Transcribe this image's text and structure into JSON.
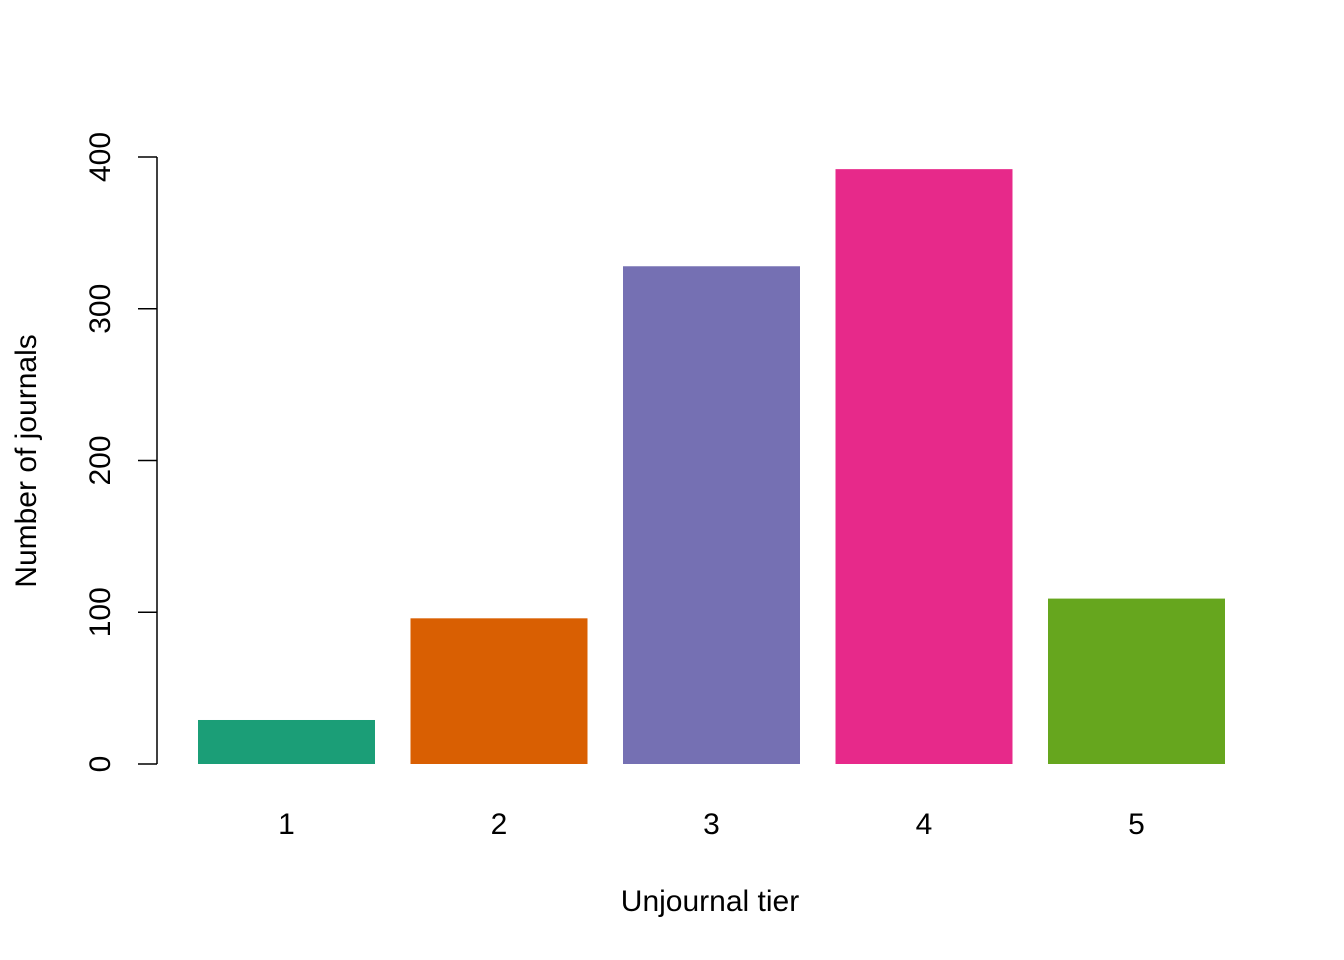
{
  "chart_data": {
    "type": "bar",
    "title": "",
    "xlabel": "Unjournal tier",
    "ylabel": "Number of journals",
    "categories": [
      "1",
      "2",
      "3",
      "4",
      "5"
    ],
    "values": [
      29,
      96,
      328,
      392,
      109
    ],
    "colors": [
      "#1B9E77",
      "#D95F02",
      "#7570B3",
      "#E7298A",
      "#66A61E"
    ],
    "yticks": [
      0,
      100,
      200,
      300,
      400
    ],
    "ylim": [
      0,
      400
    ],
    "grid": false,
    "legend": "none"
  }
}
